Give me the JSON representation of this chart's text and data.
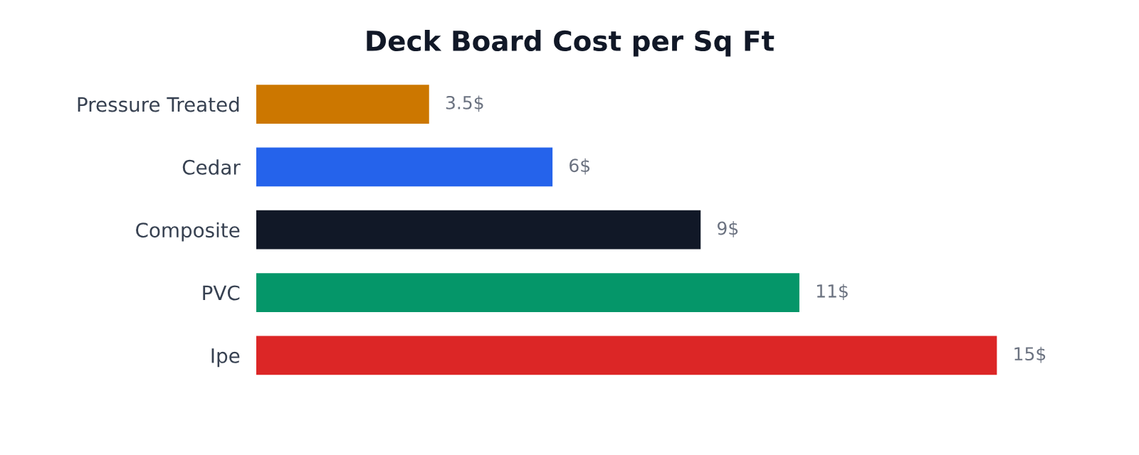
{
  "chart_data": {
    "type": "bar",
    "orientation": "horizontal",
    "title": "Deck Board Cost per Sq Ft",
    "categories": [
      "Pressure Treated",
      "Cedar",
      "Composite",
      "PVC",
      "Ipe"
    ],
    "values": [
      3.5,
      6,
      9,
      11,
      15
    ],
    "colors": [
      "#cc7700",
      "#2563eb",
      "#111827",
      "#059669",
      "#dc2626"
    ],
    "value_labels": [
      "3.5$",
      "6$",
      "9$",
      "11$",
      "15$"
    ],
    "grid": false,
    "legend": false,
    "tick_labels": "y"
  }
}
